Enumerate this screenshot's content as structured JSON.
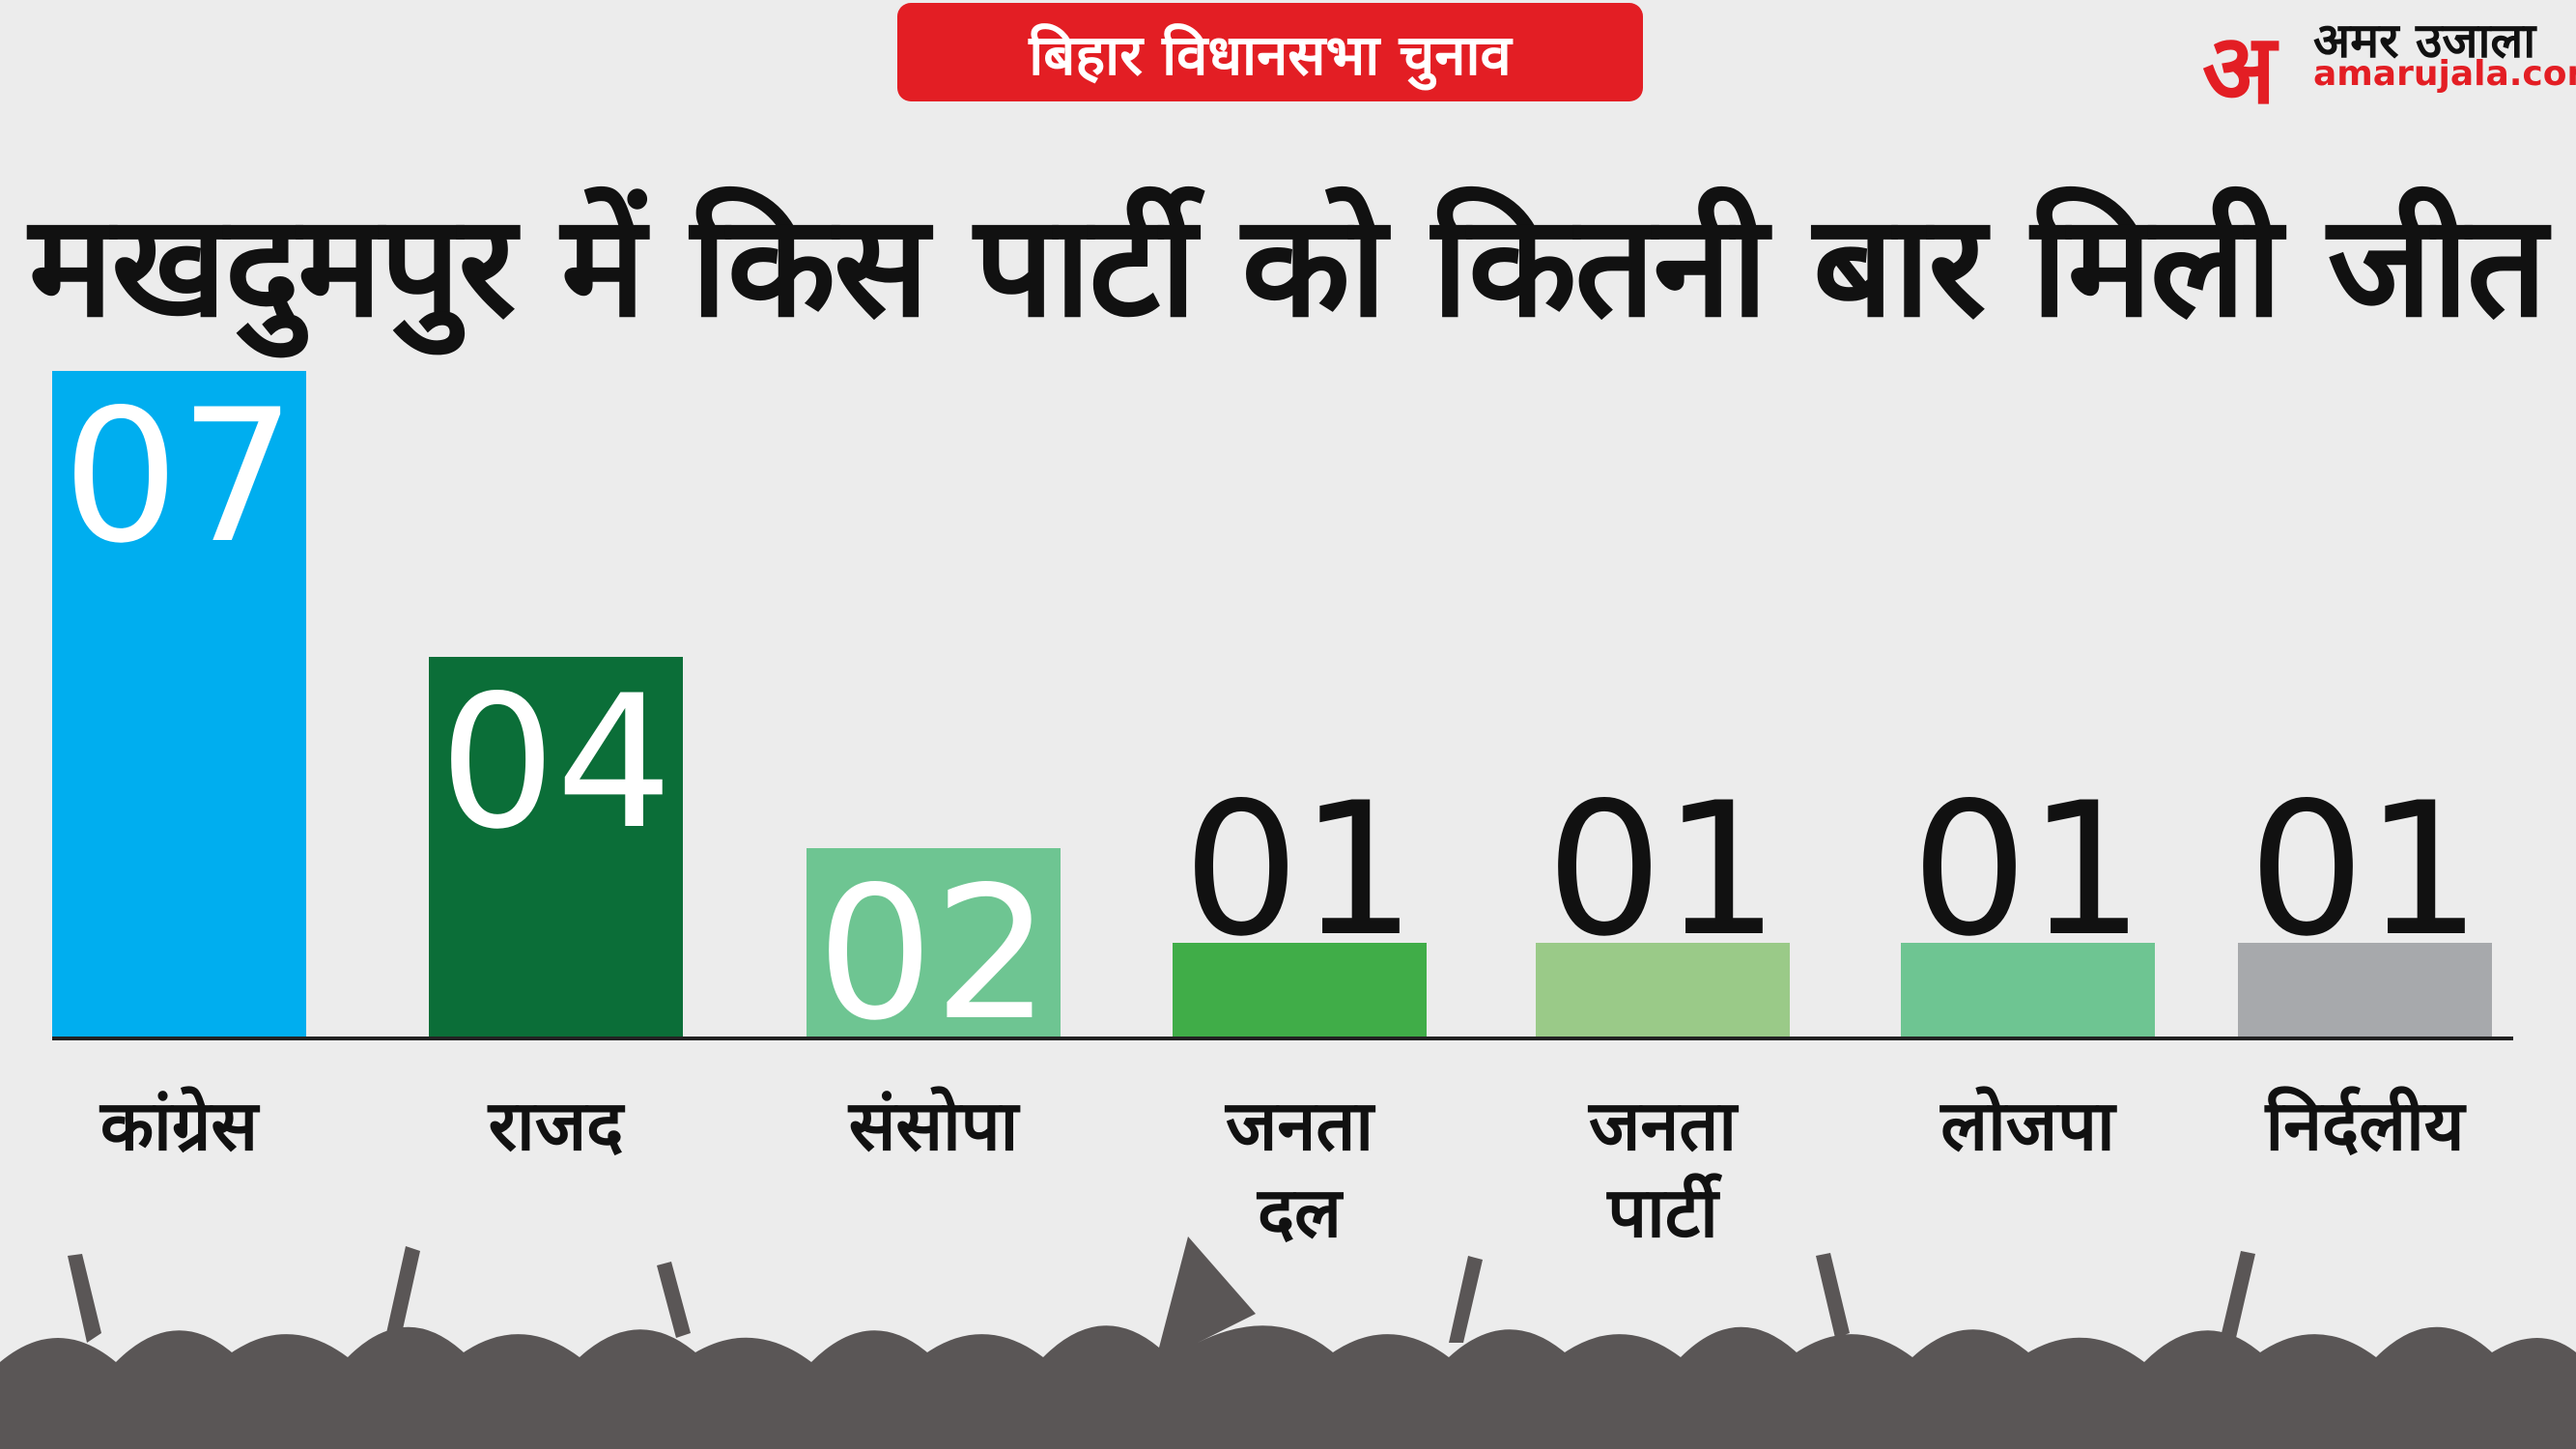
{
  "chart_data": {
    "type": "bar",
    "banner": "बिहार विधानसभा चुनाव",
    "logo": {
      "mark": "अ",
      "name": "अमर उजाला",
      "site": "amarujala.com"
    },
    "title": "मखदुमपुर में किस पार्टी को कितनी बार मिली जीत",
    "categories": [
      "कांग्रेस",
      "राजद",
      "संसोपा",
      "जनता दल",
      "जनता पार्टी",
      "लोजपा",
      "निर्दलीय"
    ],
    "values": [
      7,
      4,
      2,
      1,
      1,
      1,
      1
    ],
    "value_labels": [
      "07",
      "04",
      "02",
      "01",
      "01",
      "01",
      "01"
    ],
    "colors": [
      "#00aeef",
      "#0b6e38",
      "#6ec592",
      "#40ad48",
      "#9aca88",
      "#6ec592",
      "#a7a9ac"
    ]
  }
}
